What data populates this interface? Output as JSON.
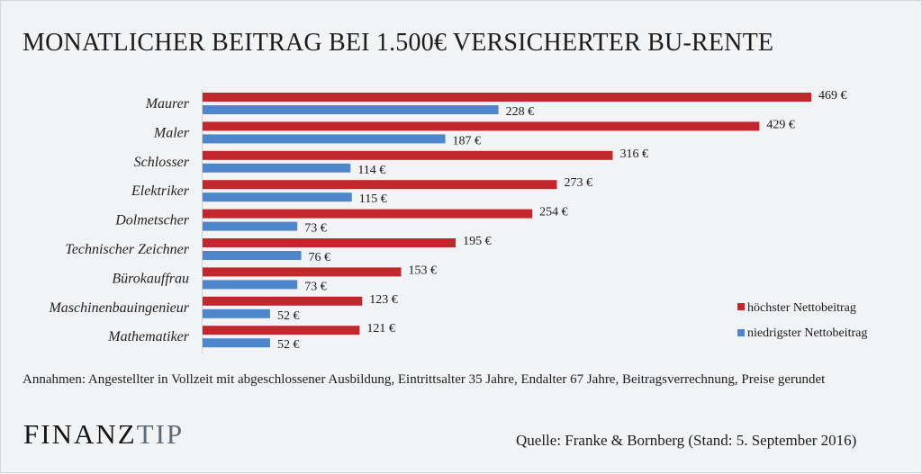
{
  "chart_data": {
    "type": "bar",
    "orientation": "horizontal",
    "title": "MONATLICHER BEITRAG BEI 1.500€ VERSICHERTER BU-RENTE",
    "xlabel": "",
    "ylabel": "",
    "xlim": [
      0,
      469
    ],
    "grid": false,
    "legend_position": "bottom-right",
    "value_suffix": " €",
    "categories": [
      "Maurer",
      "Maler",
      "Schlosser",
      "Elektriker",
      "Dolmetscher",
      "Technischer Zeichner",
      "Bürokauffrau",
      "Maschinenbauingenieur",
      "Mathematiker"
    ],
    "series": [
      {
        "name": "höchster Nettobeitrag",
        "color": "#c1272d",
        "values": [
          469,
          429,
          316,
          273,
          254,
          195,
          153,
          123,
          121
        ]
      },
      {
        "name": "niedrigster Nettobeitrag",
        "color": "#4e86cc",
        "values": [
          228,
          187,
          114,
          115,
          73,
          76,
          73,
          52,
          52
        ]
      }
    ]
  },
  "header": {
    "title": "MONATLICHER BEITRAG BEI 1.500€ VERSICHERTER BU-RENTE"
  },
  "footer": {
    "note": "Annahmen: Angestellter in Vollzeit mit abgeschlossener Ausbildung, Eintrittsalter 35 Jahre, Endalter 67 Jahre, Beitragsverrechnung, Preise gerundet",
    "logo_part1": "FINANZ",
    "logo_part2": "TIP",
    "source": "Quelle: Franke & Bornberg (Stand: 5. September 2016)"
  }
}
